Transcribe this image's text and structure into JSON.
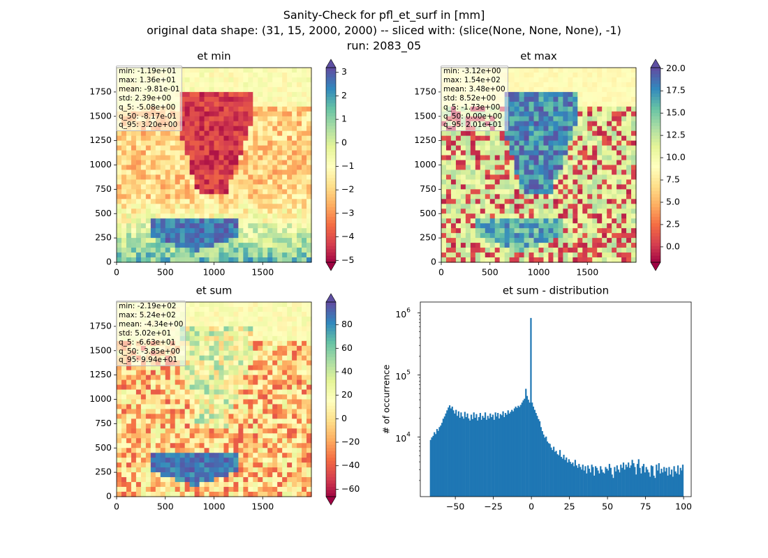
{
  "figure": {
    "title_lines": [
      "Sanity-Check for pfl_et_surf in [mm]",
      "original data shape: (31, 15, 2000, 2000) -- sliced with: (slice(None, None, None), -1)",
      "run: 2083_05"
    ]
  },
  "chart_data": [
    {
      "type": "heatmap",
      "title": "et min",
      "x_ticks": [
        0,
        500,
        1000,
        1500
      ],
      "y_ticks": [
        0,
        250,
        500,
        750,
        1000,
        1250,
        1500,
        1750
      ],
      "xlim": [
        0,
        2000
      ],
      "ylim": [
        0,
        2000
      ],
      "colormap": "Spectral",
      "colorbar": {
        "range": [
          -5.08,
          3.2
        ],
        "ticks": [
          3,
          2,
          1,
          0,
          -1,
          -2,
          -3,
          -4,
          -5
        ],
        "tick_labels": [
          "3",
          "2",
          "1",
          "0",
          "−1",
          "−2",
          "−3",
          "−4",
          "−5"
        ],
        "extend": "both"
      },
      "stats": [
        "min: -1.19e+01",
        "max: 1.36e+01",
        "mean: -9.81e-01",
        "std: 2.39e+00",
        "q_5: -5.08e+00",
        "q_50: -8.17e-01",
        "q_95: 3.20e+00"
      ]
    },
    {
      "type": "heatmap",
      "title": "et max",
      "x_ticks": [
        0,
        500,
        1000,
        1500
      ],
      "y_ticks": [
        0,
        250,
        500,
        750,
        1000,
        1250,
        1500,
        1750
      ],
      "xlim": [
        0,
        2000
      ],
      "ylim": [
        0,
        2000
      ],
      "colormap": "Spectral",
      "colorbar": {
        "range": [
          -1.73,
          20.1
        ],
        "ticks": [
          20.0,
          17.5,
          15.0,
          12.5,
          10.0,
          7.5,
          5.0,
          2.5,
          0.0
        ],
        "tick_labels": [
          "20.0",
          "17.5",
          "15.0",
          "12.5",
          "10.0",
          "7.5",
          "5.0",
          "2.5",
          "0.0"
        ],
        "extend": "both"
      },
      "stats": [
        "min: -3.12e+00",
        "max: 1.54e+02",
        "mean: 3.48e+00",
        "std: 8.52e+00",
        "q_5: -1.73e+00",
        "q_50: 0.00e+00",
        "q_95: 2.01e+01"
      ]
    },
    {
      "type": "heatmap",
      "title": "et sum",
      "x_ticks": [
        0,
        500,
        1000,
        1500
      ],
      "y_ticks": [
        0,
        250,
        500,
        750,
        1000,
        1250,
        1500,
        1750
      ],
      "xlim": [
        0,
        2000
      ],
      "ylim": [
        0,
        2000
      ],
      "colormap": "Spectral",
      "colorbar": {
        "range": [
          -66.3,
          99.4
        ],
        "ticks": [
          80,
          60,
          40,
          20,
          0,
          -20,
          -40,
          -60
        ],
        "tick_labels": [
          "80",
          "60",
          "40",
          "20",
          "0",
          "−20",
          "−40",
          "−60"
        ],
        "extend": "both"
      },
      "stats": [
        "min: -2.19e+02",
        "max: 5.24e+02",
        "mean: -4.34e+00",
        "std: 5.02e+01",
        "q_5: -6.63e+01",
        "q_50: -3.85e+00",
        "q_95: 9.94e+01"
      ]
    },
    {
      "type": "bar",
      "title": "et sum - distribution",
      "xlabel": "",
      "ylabel": "# of occurrence",
      "y_scale": "log",
      "x_ticks": [
        -50,
        -25,
        0,
        25,
        50,
        75,
        100
      ],
      "x_tick_labels": [
        "−50",
        "−25",
        "0",
        "25",
        "50",
        "75",
        "100"
      ],
      "y_ticks": [
        10000,
        100000,
        1000000
      ],
      "y_tick_labels": [
        "10^4",
        "10^5",
        "10^6"
      ],
      "xlim": [
        -73,
        105
      ],
      "ylim": [
        1100,
        1500000
      ],
      "bin_width": 0.83,
      "color": "#1f77b4",
      "bins": [
        [
          -66.3,
          9000
        ],
        [
          -65.5,
          9900
        ],
        [
          -64.6,
          10500
        ],
        [
          -63.8,
          12000
        ],
        [
          -63.0,
          11200
        ],
        [
          -62.1,
          13500
        ],
        [
          -61.3,
          12600
        ],
        [
          -60.5,
          14500
        ],
        [
          -59.6,
          15400
        ],
        [
          -58.8,
          17000
        ],
        [
          -58.0,
          19800
        ],
        [
          -57.1,
          21500
        ],
        [
          -56.3,
          24000
        ],
        [
          -55.5,
          27000
        ],
        [
          -54.6,
          30000
        ],
        [
          -53.8,
          32500
        ],
        [
          -52.9,
          29000
        ],
        [
          -52.1,
          31000
        ],
        [
          -51.3,
          27000
        ],
        [
          -50.4,
          24000
        ],
        [
          -49.6,
          27500
        ],
        [
          -48.8,
          22000
        ],
        [
          -47.9,
          26000
        ],
        [
          -47.1,
          20500
        ],
        [
          -46.3,
          25000
        ],
        [
          -45.4,
          21500
        ],
        [
          -44.6,
          19800
        ],
        [
          -43.8,
          25500
        ],
        [
          -42.9,
          21000
        ],
        [
          -42.1,
          24000
        ],
        [
          -41.3,
          20000
        ],
        [
          -40.4,
          18500
        ],
        [
          -39.6,
          23000
        ],
        [
          -38.7,
          19500
        ],
        [
          -37.9,
          25000
        ],
        [
          -37.1,
          20500
        ],
        [
          -36.2,
          23500
        ],
        [
          -35.4,
          18500
        ],
        [
          -34.6,
          21000
        ],
        [
          -33.7,
          24500
        ],
        [
          -32.9,
          19000
        ],
        [
          -32.1,
          22000
        ],
        [
          -31.2,
          20500
        ],
        [
          -30.4,
          25000
        ],
        [
          -29.6,
          19000
        ],
        [
          -28.7,
          22000
        ],
        [
          -27.9,
          20000
        ],
        [
          -27.1,
          24000
        ],
        [
          -26.2,
          21000
        ],
        [
          -25.4,
          23000
        ],
        [
          -24.6,
          19000
        ],
        [
          -23.7,
          25000
        ],
        [
          -22.9,
          21500
        ],
        [
          -22.1,
          24500
        ],
        [
          -21.2,
          20000
        ],
        [
          -20.4,
          23500
        ],
        [
          -19.6,
          22500
        ],
        [
          -18.7,
          26000
        ],
        [
          -17.9,
          21000
        ],
        [
          -17.1,
          24500
        ],
        [
          -16.2,
          23000
        ],
        [
          -15.4,
          27000
        ],
        [
          -14.6,
          24000
        ],
        [
          -13.7,
          25500
        ],
        [
          -12.9,
          27500
        ],
        [
          -12.1,
          26000
        ],
        [
          -11.2,
          29000
        ],
        [
          -10.4,
          31000
        ],
        [
          -9.6,
          29500
        ],
        [
          -8.7,
          32000
        ],
        [
          -7.9,
          30500
        ],
        [
          -7.1,
          33000
        ],
        [
          -6.2,
          36000
        ],
        [
          -5.4,
          39000
        ],
        [
          -4.6,
          41500
        ],
        [
          -3.7,
          60000
        ],
        [
          -2.9,
          46000
        ],
        [
          -2.1,
          40000
        ],
        [
          -1.2,
          36000
        ],
        [
          -0.4,
          830000
        ],
        [
          0.4,
          36000
        ],
        [
          1.2,
          31000
        ],
        [
          2.1,
          27500
        ],
        [
          2.9,
          24500
        ],
        [
          3.7,
          22000
        ],
        [
          4.6,
          19500
        ],
        [
          5.4,
          18000
        ],
        [
          6.2,
          14500
        ],
        [
          7.1,
          12500
        ],
        [
          7.9,
          11000
        ],
        [
          8.7,
          9800
        ],
        [
          9.6,
          10200
        ],
        [
          10.4,
          8500
        ],
        [
          11.2,
          8000
        ],
        [
          12.1,
          7800
        ],
        [
          12.9,
          6800
        ],
        [
          13.7,
          6200
        ],
        [
          14.6,
          7000
        ],
        [
          15.4,
          5800
        ],
        [
          16.2,
          6000
        ],
        [
          17.1,
          5300
        ],
        [
          17.9,
          5100
        ],
        [
          18.7,
          6200
        ],
        [
          19.6,
          4800
        ],
        [
          20.4,
          4500
        ],
        [
          21.2,
          5200
        ],
        [
          22.1,
          4300
        ],
        [
          22.9,
          4700
        ],
        [
          23.7,
          3900
        ],
        [
          24.6,
          4400
        ],
        [
          25.4,
          4000
        ],
        [
          26.2,
          3700
        ],
        [
          27.1,
          3900
        ],
        [
          27.9,
          3400
        ],
        [
          28.7,
          4300
        ],
        [
          29.6,
          3500
        ],
        [
          30.4,
          3200
        ],
        [
          31.2,
          3700
        ],
        [
          32.1,
          3300
        ],
        [
          32.9,
          3000
        ],
        [
          33.7,
          3600
        ],
        [
          34.6,
          2900
        ],
        [
          35.4,
          3400
        ],
        [
          36.2,
          2600
        ],
        [
          37.1,
          3500
        ],
        [
          37.9,
          3100
        ],
        [
          38.7,
          2700
        ],
        [
          39.6,
          3600
        ],
        [
          40.4,
          3300
        ],
        [
          41.2,
          2400
        ],
        [
          42.1,
          3400
        ],
        [
          42.9,
          3200
        ],
        [
          43.7,
          2900
        ],
        [
          44.6,
          2600
        ],
        [
          45.4,
          3400
        ],
        [
          46.2,
          3000
        ],
        [
          47.1,
          2700
        ],
        [
          47.9,
          2600
        ],
        [
          48.7,
          3300
        ],
        [
          49.6,
          3100
        ],
        [
          50.4,
          2900
        ],
        [
          51.2,
          3700
        ],
        [
          52.1,
          3200
        ],
        [
          52.9,
          2500
        ],
        [
          53.7,
          2200
        ],
        [
          54.6,
          3300
        ],
        [
          55.4,
          2800
        ],
        [
          56.2,
          3500
        ],
        [
          57.1,
          3000
        ],
        [
          57.9,
          2700
        ],
        [
          58.7,
          3600
        ],
        [
          59.6,
          3200
        ],
        [
          60.4,
          3900
        ],
        [
          61.2,
          3000
        ],
        [
          62.1,
          3600
        ],
        [
          62.9,
          3300
        ],
        [
          63.7,
          3900
        ],
        [
          64.6,
          3200
        ],
        [
          65.4,
          3500
        ],
        [
          66.2,
          4300
        ],
        [
          67.1,
          3800
        ],
        [
          67.9,
          3300
        ],
        [
          68.7,
          2500
        ],
        [
          69.6,
          3700
        ],
        [
          70.4,
          4400
        ],
        [
          71.2,
          3200
        ],
        [
          72.1,
          2600
        ],
        [
          72.9,
          3400
        ],
        [
          73.7,
          3700
        ],
        [
          74.6,
          2700
        ],
        [
          75.4,
          3300
        ],
        [
          76.2,
          3000
        ],
        [
          77.1,
          2700
        ],
        [
          77.9,
          2300
        ],
        [
          78.7,
          3500
        ],
        [
          79.6,
          3400
        ],
        [
          80.4,
          2400
        ],
        [
          81.2,
          2200
        ],
        [
          82.1,
          3600
        ],
        [
          82.9,
          2900
        ],
        [
          83.7,
          3800
        ],
        [
          84.6,
          2600
        ],
        [
          85.4,
          3100
        ],
        [
          86.2,
          2700
        ],
        [
          87.1,
          3300
        ],
        [
          87.9,
          2800
        ],
        [
          88.7,
          3200
        ],
        [
          89.6,
          2400
        ],
        [
          90.4,
          3300
        ],
        [
          91.2,
          2500
        ],
        [
          92.1,
          3000
        ],
        [
          92.9,
          2300
        ],
        [
          93.7,
          3400
        ],
        [
          94.6,
          2800
        ],
        [
          95.4,
          2600
        ],
        [
          96.2,
          3500
        ],
        [
          97.1,
          2500
        ],
        [
          97.9,
          3200
        ],
        [
          98.7,
          2900
        ],
        [
          99.4,
          3600
        ]
      ]
    }
  ]
}
